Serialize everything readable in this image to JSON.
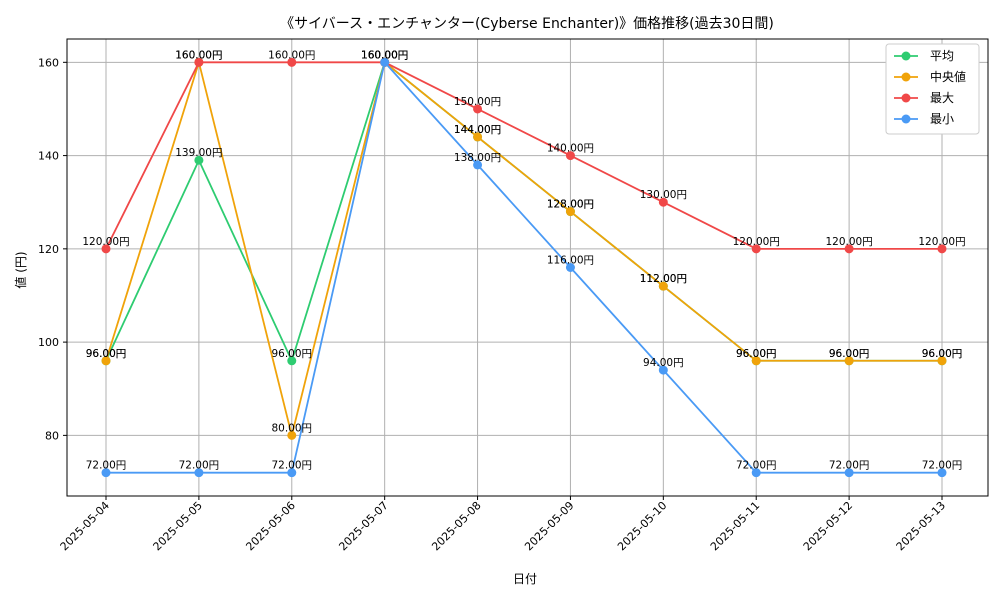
{
  "chart_data": {
    "type": "line",
    "title": "《サイバース・エンチャンター(Cyberse Enchanter)》価格推移(過去30日間)",
    "xlabel": "日付",
    "ylabel": "値 (円)",
    "ylim": [
      67,
      165
    ],
    "yticks": [
      80,
      100,
      120,
      140,
      160
    ],
    "grid": true,
    "legend_position": "top-right",
    "value_suffix": "円",
    "categories": [
      "2025-05-04",
      "2025-05-05",
      "2025-05-06",
      "2025-05-07",
      "2025-05-08",
      "2025-05-09",
      "2025-05-10",
      "2025-05-11",
      "2025-05-12",
      "2025-05-13"
    ],
    "series": [
      {
        "name": "平均",
        "color": "#2ecc71",
        "values": [
          96,
          139,
          96,
          160,
          144,
          128,
          112,
          96,
          96,
          96
        ]
      },
      {
        "name": "中央値",
        "color": "#f0a30a",
        "values": [
          96,
          160,
          80,
          160,
          144,
          128,
          112,
          96,
          96,
          96
        ]
      },
      {
        "name": "最大",
        "color": "#f04848",
        "values": [
          120,
          160,
          160,
          160,
          150,
          140,
          130,
          120,
          120,
          120
        ]
      },
      {
        "name": "最小",
        "color": "#4a9af5",
        "values": [
          72,
          72,
          72,
          160,
          138,
          116,
          94,
          72,
          72,
          72
        ]
      }
    ]
  }
}
